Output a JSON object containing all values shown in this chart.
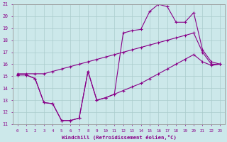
{
  "xlabel": "Windchill (Refroidissement éolien,°C)",
  "background_color": "#cce8ea",
  "grid_color": "#aacccc",
  "line_color": "#880088",
  "xlim": [
    -0.5,
    23.5
  ],
  "ylim": [
    11,
    21
  ],
  "xticks": [
    0,
    1,
    2,
    3,
    4,
    5,
    6,
    7,
    8,
    9,
    10,
    11,
    12,
    13,
    14,
    15,
    16,
    17,
    18,
    19,
    20,
    21,
    22,
    23
  ],
  "yticks": [
    11,
    12,
    13,
    14,
    15,
    16,
    17,
    18,
    19,
    20,
    21
  ],
  "series1_x": [
    0,
    1,
    2,
    3,
    4,
    5,
    6,
    7,
    8,
    9,
    10,
    11,
    12,
    13,
    14,
    15,
    16,
    17,
    18,
    19,
    20,
    21,
    22,
    23
  ],
  "series1_y": [
    15.1,
    15.1,
    14.8,
    12.8,
    12.7,
    11.3,
    11.3,
    11.5,
    15.4,
    13.0,
    13.2,
    13.5,
    13.8,
    14.1,
    14.4,
    14.8,
    15.2,
    15.6,
    16.0,
    16.4,
    16.8,
    16.2,
    15.9,
    16.0
  ],
  "series2_x": [
    0,
    1,
    2,
    3,
    4,
    5,
    6,
    7,
    8,
    9,
    10,
    11,
    12,
    13,
    14,
    15,
    16,
    17,
    18,
    19,
    20,
    21,
    22,
    23
  ],
  "series2_y": [
    15.2,
    15.2,
    15.2,
    15.2,
    15.4,
    15.6,
    15.8,
    16.0,
    16.2,
    16.4,
    16.6,
    16.8,
    17.0,
    17.2,
    17.4,
    17.6,
    17.8,
    18.0,
    18.2,
    18.4,
    18.6,
    17.0,
    16.0,
    16.0
  ],
  "series3_x": [
    0,
    1,
    2,
    3,
    4,
    5,
    6,
    7,
    8,
    9,
    10,
    11,
    12,
    13,
    14,
    15,
    16,
    17,
    18,
    19,
    20,
    21,
    22,
    23
  ],
  "series3_y": [
    15.1,
    15.1,
    14.8,
    12.8,
    12.7,
    11.3,
    11.3,
    11.5,
    15.4,
    13.0,
    13.2,
    13.5,
    18.6,
    18.8,
    18.9,
    20.4,
    21.0,
    20.8,
    19.5,
    19.5,
    20.3,
    17.2,
    16.2,
    16.0
  ]
}
